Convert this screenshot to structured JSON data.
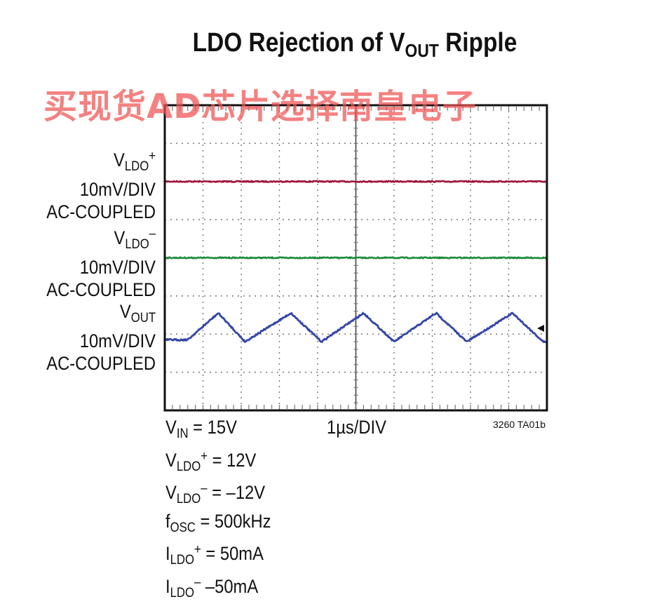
{
  "title": {
    "main": "LDO Rejection of V",
    "sub": "OUT",
    "tail": " Ripple"
  },
  "watermark": "买现货AD芯片选择南皇电子",
  "channel_labels": [
    {
      "v": "V",
      "sub": "LDO",
      "sup": "+",
      "scale": "10mV/DIV",
      "coupling": "AC-COUPLED"
    },
    {
      "v": "V",
      "sub": "LDO",
      "sup": "–",
      "scale": "10mV/DIV",
      "coupling": "AC-COUPLED"
    },
    {
      "v": "V",
      "sub": "OUT",
      "sup": "",
      "scale": "10mV/DIV",
      "coupling": "AC-COUPLED"
    }
  ],
  "conditions": [
    {
      "pre": "V",
      "sub": "IN",
      "sup": "",
      "post": " = 15V"
    },
    {
      "pre": "V",
      "sub": "LDO",
      "sup": "+",
      "post": " = 12V"
    },
    {
      "pre": "V",
      "sub": "LDO",
      "sup": "–",
      "post": " = –12V"
    },
    {
      "pre": "f",
      "sub": "OSC",
      "sup": "",
      "post": " = 500kHz"
    },
    {
      "pre": "I",
      "sub": "LDO",
      "sup": "+",
      "post": " = 50mA"
    },
    {
      "pre": "I",
      "sub": "LDO",
      "sup": "–",
      "post": " –50mA"
    }
  ],
  "timebase": "1µs/DIV",
  "figure_id": "3260 TA01b",
  "colors": {
    "vldo_pos": "#a0143c",
    "vldo_neg": "#1e8c3c",
    "vout": "#3446a8",
    "grid": "#777777",
    "frame": "#111111"
  },
  "chart_data": {
    "type": "line",
    "title": "LDO Rejection of VOUT Ripple",
    "grid": true,
    "x_divisions": 5,
    "y_divisions": 8,
    "x_unit": "µs",
    "y_unit": "div",
    "xlim": [
      0,
      5
    ],
    "ylim": [
      0,
      8
    ],
    "series": [
      {
        "name": "VLDO+",
        "scale": "10mV/DIV",
        "x": [
          0,
          5
        ],
        "y": [
          6.0,
          6.0
        ],
        "shape": "flat"
      },
      {
        "name": "VLDO-",
        "scale": "10mV/DIV",
        "x": [
          0,
          5
        ],
        "y": [
          4.0,
          4.0
        ],
        "shape": "flat"
      },
      {
        "name": "VOUT",
        "scale": "10mV/DIV",
        "shape": "triangle",
        "x": [
          0,
          0.3,
          0.7,
          1.05,
          1.65,
          2.05,
          2.6,
          3.0,
          3.55,
          3.95,
          4.55,
          4.95,
          5.0
        ],
        "y": [
          1.85,
          1.85,
          2.55,
          1.8,
          2.55,
          1.8,
          2.55,
          1.8,
          2.55,
          1.8,
          2.55,
          1.8,
          1.8
        ]
      }
    ]
  }
}
